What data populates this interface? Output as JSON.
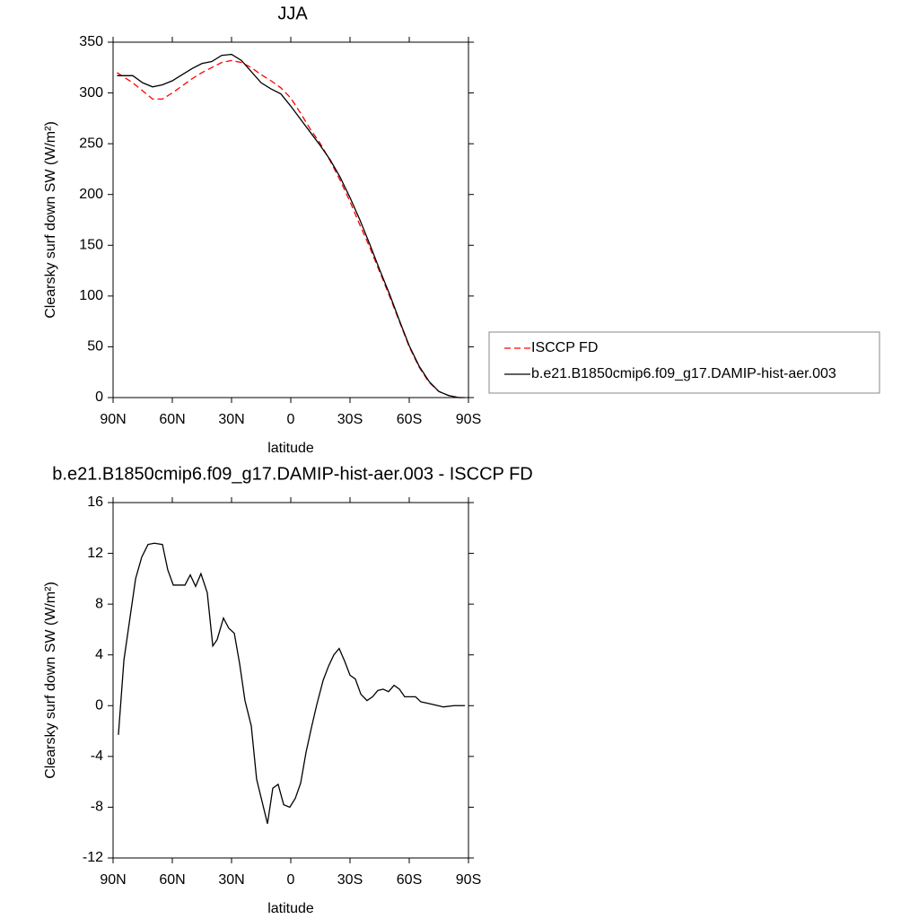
{
  "chart_data": [
    {
      "type": "line",
      "title": "JJA",
      "xlabel": "latitude",
      "ylabel": "Clearsky surf down SW (W/m²)",
      "x": [
        88,
        80,
        75,
        70,
        65,
        60,
        55,
        50,
        45,
        40,
        35,
        30,
        25,
        20,
        15,
        10,
        5,
        0,
        -5,
        -10,
        -15,
        -20,
        -25,
        -30,
        -35,
        -40,
        -45,
        -50,
        -55,
        -60,
        -65,
        -70,
        -75,
        -80,
        -85,
        -88
      ],
      "series": [
        {
          "name": "ISCCP FD",
          "color": "#ff0000",
          "line_style": "dashed",
          "values": [
            320,
            310,
            302,
            294,
            294,
            300,
            307,
            314,
            320,
            325,
            330,
            332,
            330,
            325,
            318,
            312,
            305,
            295,
            280,
            264,
            250,
            233,
            214,
            193,
            170,
            148,
            124,
            100,
            75,
            50,
            30,
            15,
            6,
            2,
            0,
            0
          ]
        },
        {
          "name": "b.e21.B1850cmip6.f09_g17.DAMIP-hist-aer.003",
          "color": "#000000",
          "line_style": "solid",
          "values": [
            317,
            317,
            310,
            306,
            308,
            312,
            318,
            324,
            329,
            331,
            337,
            338,
            332,
            321,
            310,
            304,
            299,
            287,
            274,
            261,
            248,
            234,
            217,
            197,
            175,
            151,
            126,
            102,
            76,
            51,
            31,
            16,
            6,
            2,
            0,
            0
          ]
        }
      ],
      "xlim": [
        90,
        -90
      ],
      "xticks": [
        {
          "value": 90,
          "label": "90N"
        },
        {
          "value": 60,
          "label": "60N"
        },
        {
          "value": 30,
          "label": "30N"
        },
        0,
        {
          "value": -30,
          "label": "30S"
        },
        {
          "value": -60,
          "label": "60S"
        },
        {
          "value": -90,
          "label": "90S"
        }
      ],
      "ylim": [
        0,
        350
      ],
      "yticks": [
        0,
        50,
        100,
        150,
        200,
        250,
        300,
        350
      ],
      "legend": "right"
    },
    {
      "type": "line",
      "title": "b.e21.B1850cmip6.f09_g17.DAMIP-hist-aer.003 - ISCCP FD",
      "xlabel": "latitude",
      "ylabel": "Clearsky surf down SW (W/m²)",
      "x": [
        87.3,
        84.5,
        78.6,
        75.5,
        72.3,
        69.1,
        65,
        62.3,
        59.5,
        53.6,
        50.9,
        48.2,
        45.5,
        42.3,
        39.5,
        37.3,
        34.1,
        31.4,
        28.6,
        25.9,
        23.2,
        20,
        17.3,
        11.8,
        9.1,
        6.4,
        3.6,
        0.5,
        -2.3,
        -5,
        -7.7,
        -10.5,
        -13.2,
        -16.4,
        -19.1,
        -21.8,
        -24.5,
        -27.3,
        -30,
        -32.7,
        -35.5,
        -38.6,
        -41.4,
        -44.1,
        -46.8,
        -49.5,
        -52.3,
        -55,
        -57.7,
        -63.2,
        -65.9,
        -69.1,
        -71.8,
        -74.5,
        -77.3,
        -82.7,
        -88.2
      ],
      "series": [
        {
          "name": null,
          "color": "#000000",
          "line_style": "solid",
          "values": [
            -2.3,
            3.6,
            10.0,
            11.7,
            12.7,
            12.8,
            12.7,
            10.7,
            9.5,
            9.5,
            10.3,
            9.4,
            10.4,
            8.9,
            4.7,
            5.2,
            6.9,
            6.1,
            5.7,
            3.3,
            0.4,
            -1.6,
            -5.8,
            -9.3,
            -6.5,
            -6.2,
            -7.8,
            -8.0,
            -7.3,
            -6.1,
            -3.7,
            -1.7,
            0.1,
            2.0,
            3.1,
            4.0,
            4.5,
            3.5,
            2.4,
            2.1,
            0.9,
            0.4,
            0.7,
            1.2,
            1.3,
            1.1,
            1.6,
            1.3,
            0.7,
            0.7,
            0.3,
            0.2,
            0.1,
            0.0,
            -0.1,
            0.0,
            0.0
          ]
        }
      ],
      "xlim": [
        90,
        -90
      ],
      "xticks": [
        {
          "value": 90,
          "label": "90N"
        },
        {
          "value": 60,
          "label": "60N"
        },
        {
          "value": 30,
          "label": "30N"
        },
        0,
        {
          "value": -30,
          "label": "30S"
        },
        {
          "value": -60,
          "label": "60S"
        },
        {
          "value": -90,
          "label": "90S"
        }
      ],
      "ylim": [
        -12,
        16
      ],
      "yticks": [
        -12,
        -8,
        -4,
        0,
        4,
        8,
        12,
        16
      ]
    }
  ]
}
